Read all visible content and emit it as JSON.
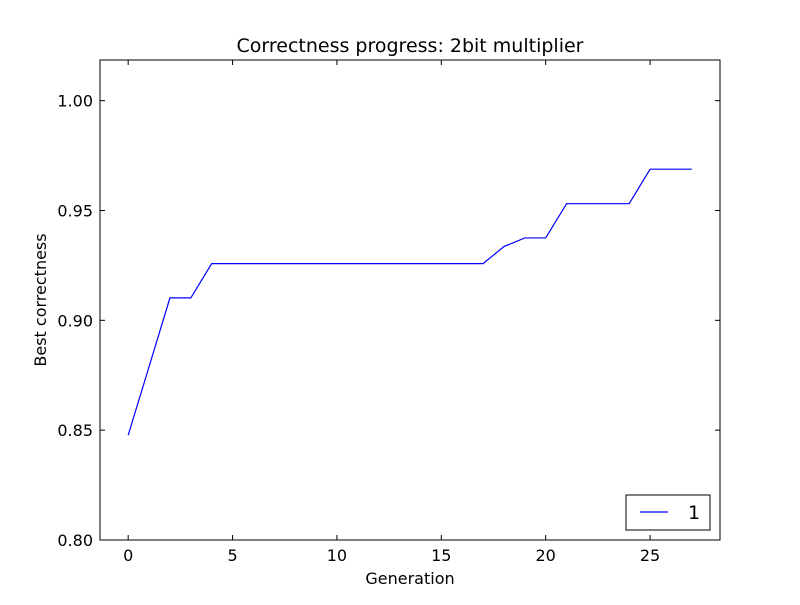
{
  "chart_data": {
    "type": "line",
    "title": "Correctness progress: 2bit multiplier",
    "xlabel": "Generation",
    "ylabel": "Best correctness",
    "xlim": [
      -1.35,
      28.35
    ],
    "ylim": [
      0.8,
      1.0185
    ],
    "xticks": [
      0,
      5,
      10,
      15,
      20,
      25
    ],
    "xtick_labels": [
      "0",
      "5",
      "10",
      "15",
      "20",
      "25"
    ],
    "yticks": [
      0.8,
      0.85,
      0.9,
      0.95,
      1.0
    ],
    "ytick_labels": [
      "0.80",
      "0.85",
      "0.90",
      "0.95",
      "1.00"
    ],
    "grid": false,
    "legend": {
      "location": "lower-right"
    },
    "series": [
      {
        "name": "1",
        "color": "#0000ff",
        "x": [
          0,
          1,
          2,
          3,
          4,
          5,
          6,
          7,
          8,
          9,
          10,
          11,
          12,
          13,
          14,
          15,
          16,
          17,
          18,
          19,
          20,
          21,
          22,
          23,
          24,
          25,
          26,
          27
        ],
        "y": [
          0.8477,
          0.8789,
          0.9102,
          0.9102,
          0.9258,
          0.9258,
          0.9258,
          0.9258,
          0.9258,
          0.9258,
          0.9258,
          0.9258,
          0.9258,
          0.9258,
          0.9258,
          0.9258,
          0.9258,
          0.9258,
          0.9336,
          0.9375,
          0.9375,
          0.9531,
          0.9531,
          0.9531,
          0.9531,
          0.9688,
          0.9688,
          0.9688
        ]
      }
    ]
  }
}
